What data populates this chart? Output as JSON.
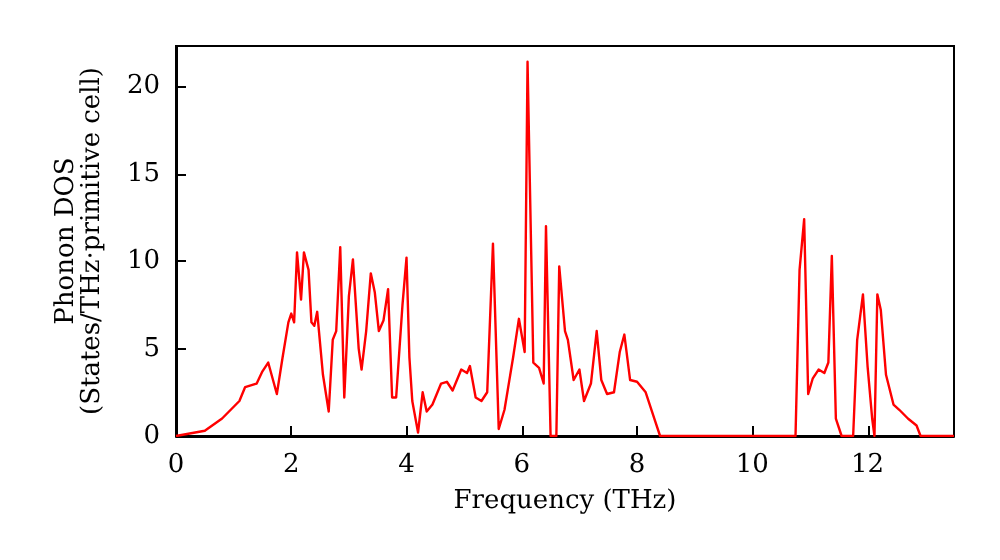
{
  "chart_data": {
    "type": "line",
    "xlabel": "Frequency (THz)",
    "ylabel": "Phonon DOS\n(States/THz·primitive cell)",
    "xlim": [
      0,
      13.5
    ],
    "ylim": [
      0,
      22.3
    ],
    "xticks": [
      0,
      2,
      4,
      6,
      8,
      10,
      12
    ],
    "yticks": [
      0,
      5,
      10,
      15,
      20
    ],
    "grid": false,
    "marker": "none",
    "line_style": "solid",
    "x": [
      0,
      0.5,
      0.8,
      1.1,
      1.2,
      1.4,
      1.5,
      1.6,
      1.75,
      1.85,
      1.95,
      2.0,
      2.05,
      2.1,
      2.17,
      2.22,
      2.3,
      2.35,
      2.4,
      2.45,
      2.55,
      2.65,
      2.72,
      2.78,
      2.85,
      2.92,
      3.0,
      3.07,
      3.17,
      3.22,
      3.3,
      3.38,
      3.45,
      3.52,
      3.6,
      3.68,
      3.75,
      3.82,
      3.93,
      4.0,
      4.05,
      4.1,
      4.2,
      4.28,
      4.35,
      4.45,
      4.6,
      4.7,
      4.8,
      4.95,
      5.05,
      5.1,
      5.2,
      5.3,
      5.4,
      5.5,
      5.6,
      5.7,
      5.85,
      5.95,
      6.05,
      6.1,
      6.2,
      6.3,
      6.38,
      6.42,
      6.5,
      6.6,
      6.65,
      6.75,
      6.8,
      6.9,
      7.0,
      7.08,
      7.2,
      7.3,
      7.38,
      7.48,
      7.6,
      7.7,
      7.78,
      7.88,
      8.0,
      8.15,
      8.3,
      8.4,
      9,
      10.75,
      10.82,
      10.9,
      10.97,
      11.05,
      11.15,
      11.25,
      11.32,
      11.38,
      11.45,
      11.55,
      11.75,
      11.82,
      11.92,
      12.0,
      12.08,
      12.12,
      12.17,
      12.23,
      12.32,
      12.45,
      12.55,
      12.7,
      12.85,
      12.92,
      13.5
    ],
    "series": [
      {
        "color": "#ff0000",
        "values": [
          0,
          0.3,
          1,
          2,
          2.8,
          3,
          3.7,
          4.2,
          2.4,
          4.5,
          6.5,
          7,
          6.5,
          10.5,
          7.8,
          10.5,
          9.5,
          6.5,
          6.3,
          7.1,
          3.5,
          1.4,
          5.5,
          6,
          10.8,
          2.2,
          8,
          10.1,
          5,
          3.8,
          6,
          9.3,
          8.2,
          6,
          6.6,
          8.4,
          2.2,
          2.2,
          7.5,
          10.2,
          4.5,
          2,
          0.2,
          2.5,
          1.4,
          1.8,
          3,
          3.1,
          2.6,
          3.8,
          3.6,
          4,
          2.2,
          2,
          2.5,
          11,
          0.4,
          1.5,
          4.5,
          6.7,
          4.8,
          21.4,
          4.2,
          3.9,
          3,
          12,
          0,
          0,
          9.7,
          6,
          5.5,
          3.2,
          3.8,
          2,
          3,
          6,
          3.2,
          2.4,
          2.5,
          4.8,
          5.8,
          3.2,
          3.1,
          2.5,
          1,
          0,
          0,
          0,
          9.5,
          12.4,
          2.4,
          3.3,
          3.8,
          3.6,
          4.2,
          10.3,
          1,
          0,
          0,
          5.5,
          8.1,
          4,
          1,
          0,
          8.1,
          7.2,
          3.5,
          1.8,
          1.5,
          1,
          0.6,
          0,
          0
        ]
      }
    ]
  }
}
